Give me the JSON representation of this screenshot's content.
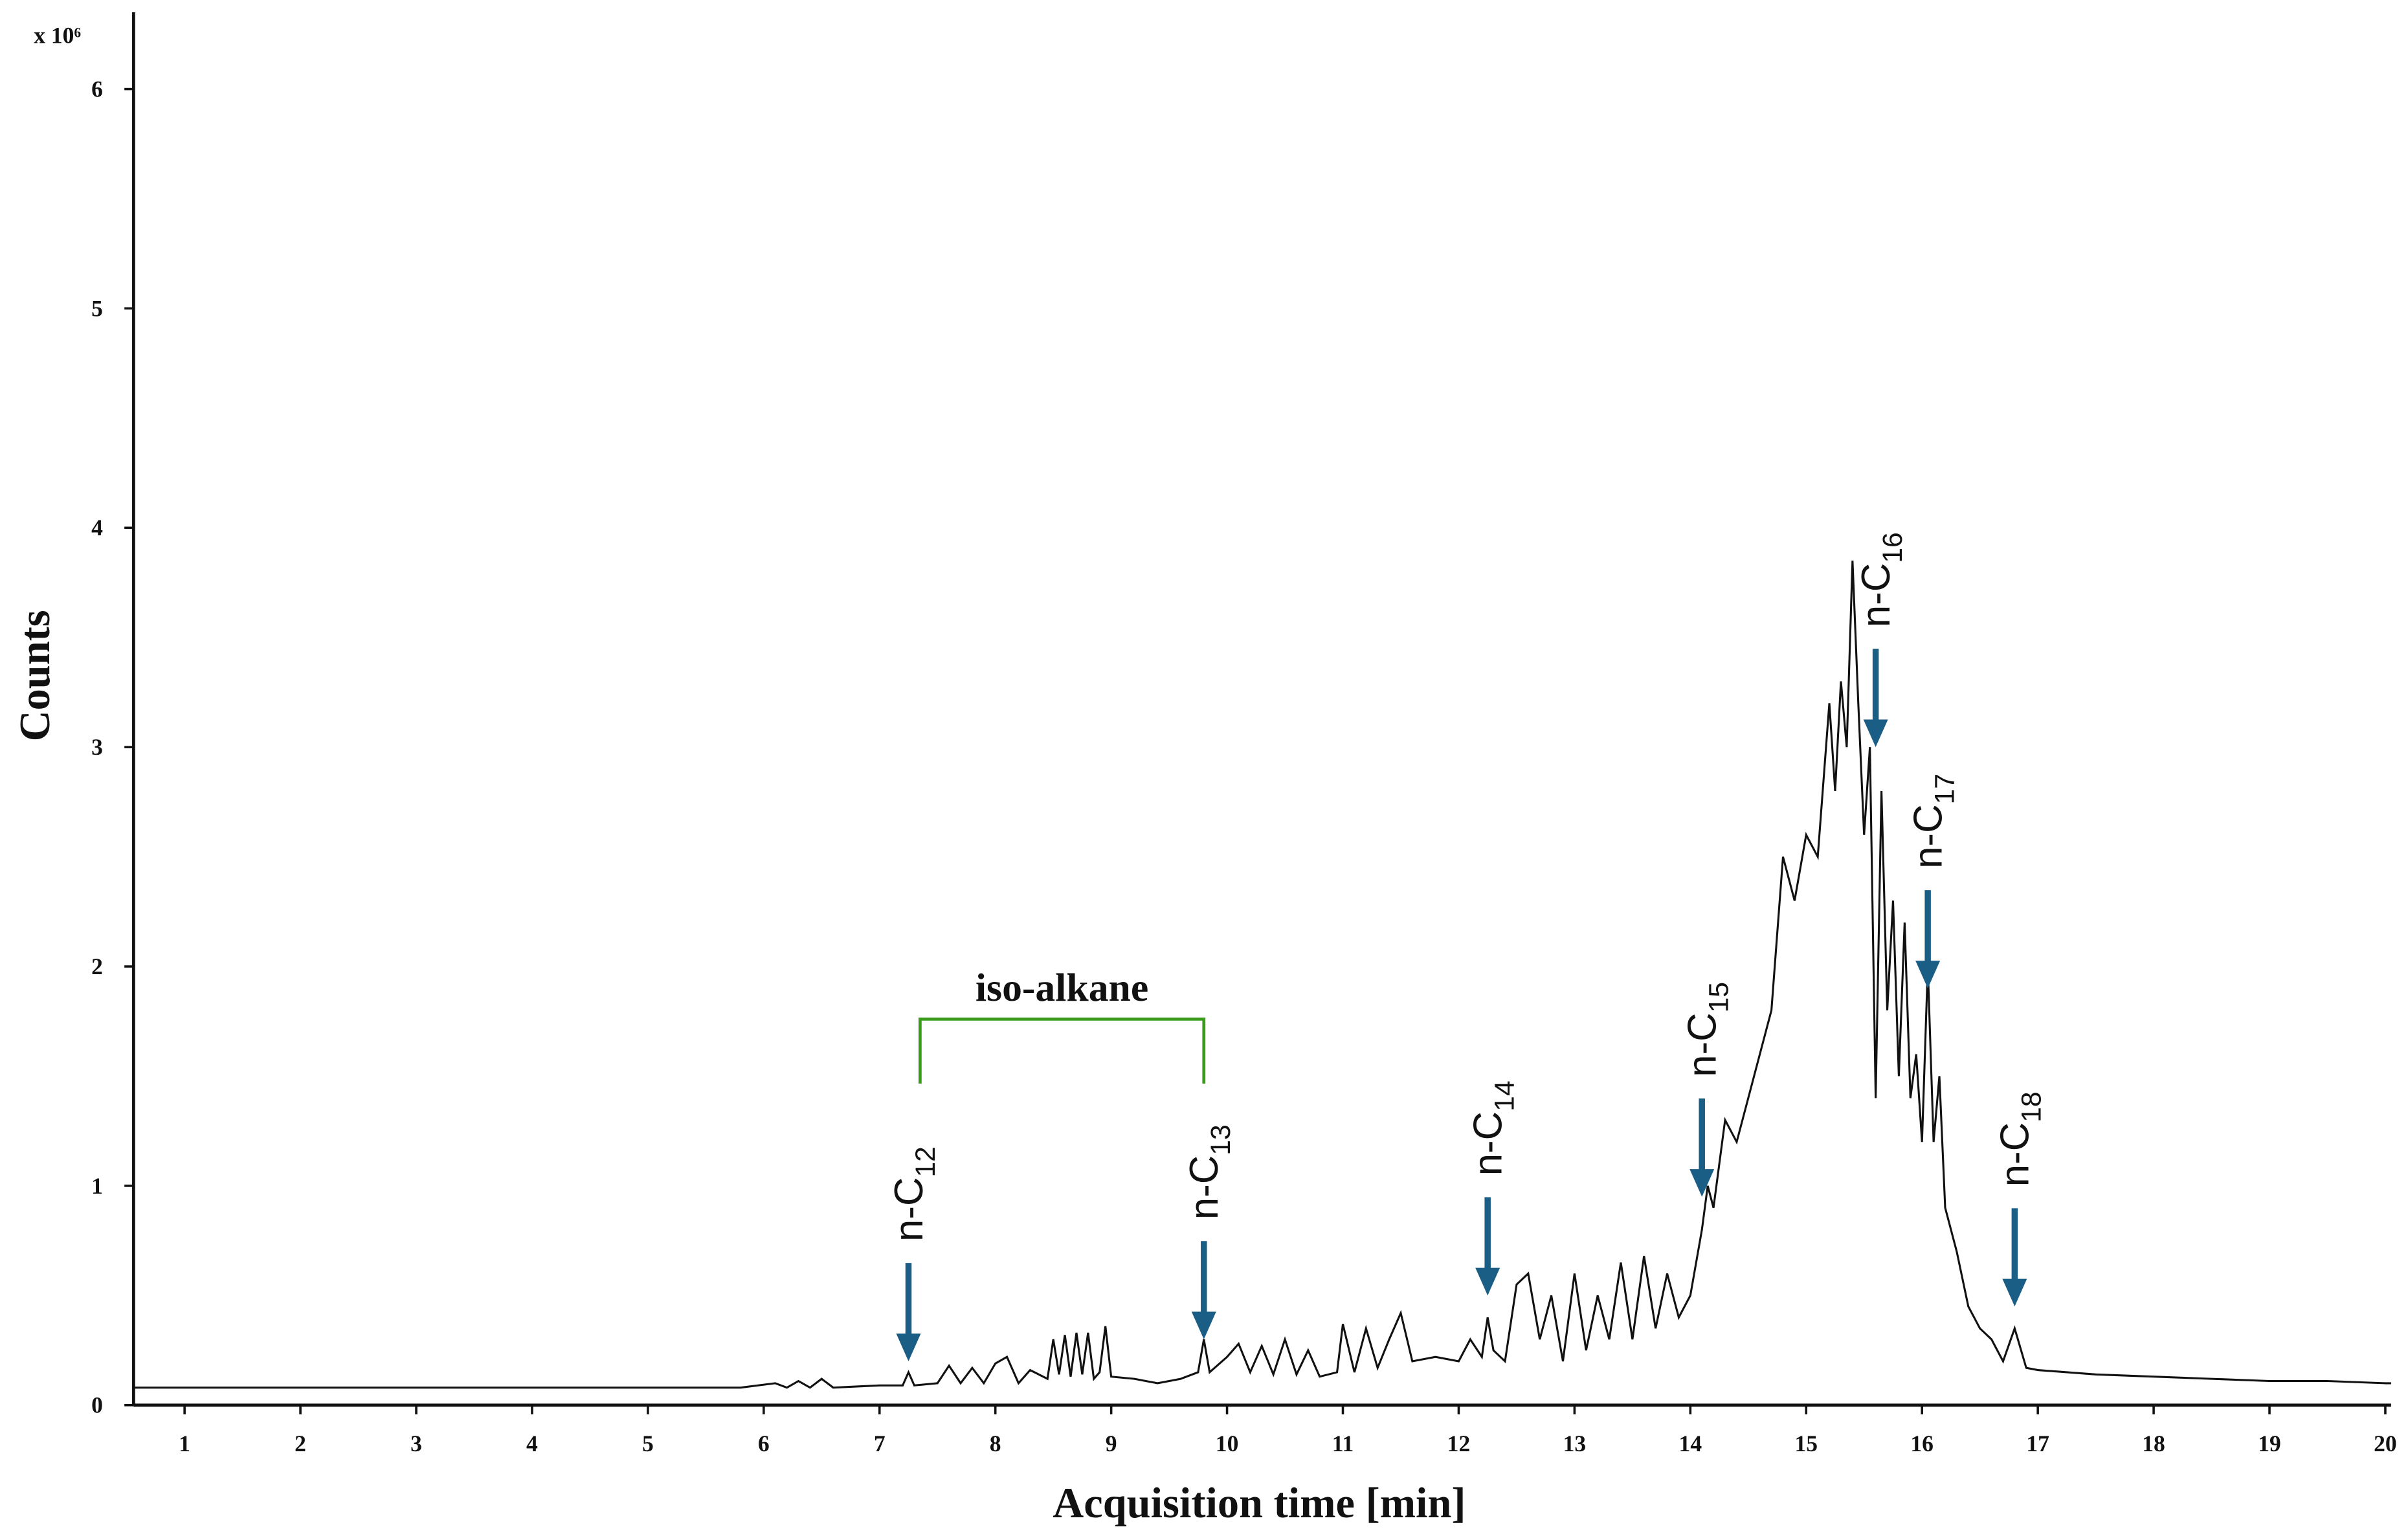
{
  "chart_data": {
    "type": "line",
    "x_label": "Acquisition time [min]",
    "y_label": "Counts",
    "y_multiplier": "x 10⁶",
    "xlim": [
      0.56,
      20.05
    ],
    "ylim": [
      0,
      6.35
    ],
    "xticks": [
      1,
      2,
      3,
      4,
      5,
      6,
      7,
      8,
      9,
      10,
      11,
      12,
      13,
      14,
      15,
      16,
      17,
      18,
      19,
      20
    ],
    "yticks": [
      0,
      1,
      2,
      3,
      4,
      5,
      6
    ],
    "series": [
      {
        "color": "#111111",
        "x": [
          0.56,
          1,
          2,
          3,
          4,
          5,
          5.8,
          6.1,
          6.2,
          6.3,
          6.4,
          6.5,
          6.6,
          7.0,
          7.2,
          7.25,
          7.3,
          7.5,
          7.6,
          7.7,
          7.8,
          7.9,
          8.0,
          8.1,
          8.2,
          8.3,
          8.45,
          8.5,
          8.55,
          8.6,
          8.65,
          8.7,
          8.75,
          8.8,
          8.85,
          8.9,
          8.95,
          9.0,
          9.2,
          9.4,
          9.6,
          9.75,
          9.8,
          9.85,
          10.0,
          10.1,
          10.2,
          10.3,
          10.4,
          10.5,
          10.6,
          10.7,
          10.8,
          10.95,
          11.0,
          11.1,
          11.2,
          11.3,
          11.4,
          11.5,
          11.6,
          11.8,
          12.0,
          12.1,
          12.2,
          12.25,
          12.3,
          12.4,
          12.5,
          12.6,
          12.7,
          12.8,
          12.9,
          13.0,
          13.1,
          13.2,
          13.3,
          13.4,
          13.5,
          13.6,
          13.7,
          13.8,
          13.9,
          14.0,
          14.1,
          14.15,
          14.2,
          14.3,
          14.4,
          14.5,
          14.6,
          14.7,
          14.8,
          14.9,
          15.0,
          15.1,
          15.2,
          15.25,
          15.3,
          15.35,
          15.4,
          15.45,
          15.5,
          15.55,
          15.6,
          15.65,
          15.7,
          15.75,
          15.8,
          15.85,
          15.9,
          15.95,
          16.0,
          16.05,
          16.1,
          16.15,
          16.2,
          16.3,
          16.4,
          16.5,
          16.6,
          16.7,
          16.8,
          16.9,
          17.0,
          17.5,
          18,
          18.5,
          19,
          19.5,
          20,
          20.05
        ],
        "values": [
          0.08,
          0.08,
          0.08,
          0.08,
          0.08,
          0.08,
          0.08,
          0.1,
          0.08,
          0.11,
          0.08,
          0.12,
          0.08,
          0.09,
          0.09,
          0.15,
          0.09,
          0.1,
          0.18,
          0.1,
          0.17,
          0.1,
          0.19,
          0.22,
          0.1,
          0.16,
          0.12,
          0.3,
          0.14,
          0.32,
          0.13,
          0.33,
          0.14,
          0.33,
          0.12,
          0.15,
          0.36,
          0.13,
          0.12,
          0.1,
          0.12,
          0.15,
          0.3,
          0.15,
          0.22,
          0.28,
          0.15,
          0.27,
          0.14,
          0.3,
          0.14,
          0.25,
          0.13,
          0.15,
          0.37,
          0.15,
          0.35,
          0.17,
          0.3,
          0.42,
          0.2,
          0.22,
          0.2,
          0.3,
          0.22,
          0.4,
          0.25,
          0.2,
          0.55,
          0.6,
          0.3,
          0.5,
          0.2,
          0.6,
          0.25,
          0.5,
          0.3,
          0.65,
          0.3,
          0.68,
          0.35,
          0.6,
          0.4,
          0.5,
          0.8,
          1.0,
          0.9,
          1.3,
          1.2,
          1.4,
          1.6,
          1.8,
          2.5,
          2.3,
          2.6,
          2.5,
          3.2,
          2.8,
          3.3,
          3.0,
          3.85,
          3.2,
          2.6,
          3.0,
          1.4,
          2.8,
          1.8,
          2.3,
          1.5,
          2.2,
          1.4,
          1.6,
          1.2,
          2.0,
          1.2,
          1.5,
          0.9,
          0.7,
          0.45,
          0.35,
          0.3,
          0.2,
          0.35,
          0.17,
          0.16,
          0.14,
          0.13,
          0.12,
          0.11,
          0.11,
          0.1,
          0.1
        ]
      }
    ],
    "annotations": [
      {
        "text": "n-C",
        "sub": "12",
        "x": 7.25,
        "y": 0.2
      },
      {
        "text": "n-C",
        "sub": "13",
        "x": 9.8,
        "y": 0.3
      },
      {
        "text": "n-C",
        "sub": "14",
        "x": 12.25,
        "y": 0.5
      },
      {
        "text": "n-C",
        "sub": "15",
        "x": 14.1,
        "y": 0.95
      },
      {
        "text": "n-C",
        "sub": "16",
        "x": 15.6,
        "y": 3.0
      },
      {
        "text": "n-C",
        "sub": "17",
        "x": 16.05,
        "y": 1.9
      },
      {
        "text": "n-C",
        "sub": "18",
        "x": 16.8,
        "y": 0.45
      }
    ],
    "bracket": {
      "label": "iso-alkane",
      "x0": 7.35,
      "x1": 9.8,
      "y": 1.76,
      "color": "#3a9a1a"
    },
    "arrow_color": "#1a5e86"
  }
}
